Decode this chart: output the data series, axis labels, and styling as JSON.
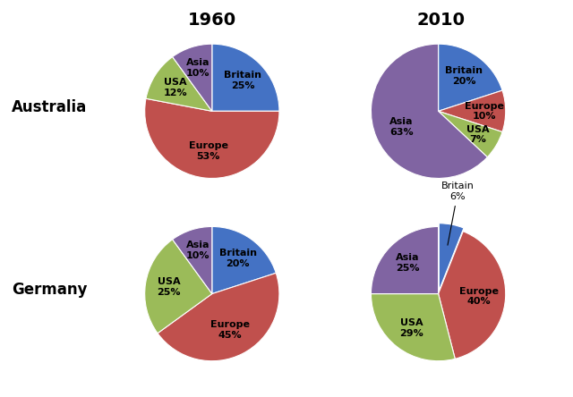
{
  "title_1960": "1960",
  "title_2010": "2010",
  "row_labels": [
    "Australia",
    "Germany"
  ],
  "colors": {
    "Britain": "#4472C4",
    "Europe": "#C0504D",
    "USA": "#9BBB59",
    "Asia": "#8064A2"
  },
  "australia_1960": {
    "labels": [
      "Britain",
      "Europe",
      "USA",
      "Asia"
    ],
    "values": [
      25,
      53,
      12,
      10
    ]
  },
  "australia_2010": {
    "labels": [
      "Britain",
      "Europe",
      "USA",
      "Asia"
    ],
    "values": [
      20,
      10,
      7,
      63
    ]
  },
  "germany_1960": {
    "labels": [
      "Britain",
      "Europe",
      "USA",
      "Asia"
    ],
    "values": [
      20,
      45,
      25,
      10
    ]
  },
  "germany_2010": {
    "labels": [
      "Britain",
      "Europe",
      "USA",
      "Asia"
    ],
    "values": [
      6,
      40,
      29,
      25
    ]
  },
  "background_color": "#f0f0f0",
  "label_fontsize": 8,
  "title_fontsize": 14,
  "row_label_fontsize": 12
}
